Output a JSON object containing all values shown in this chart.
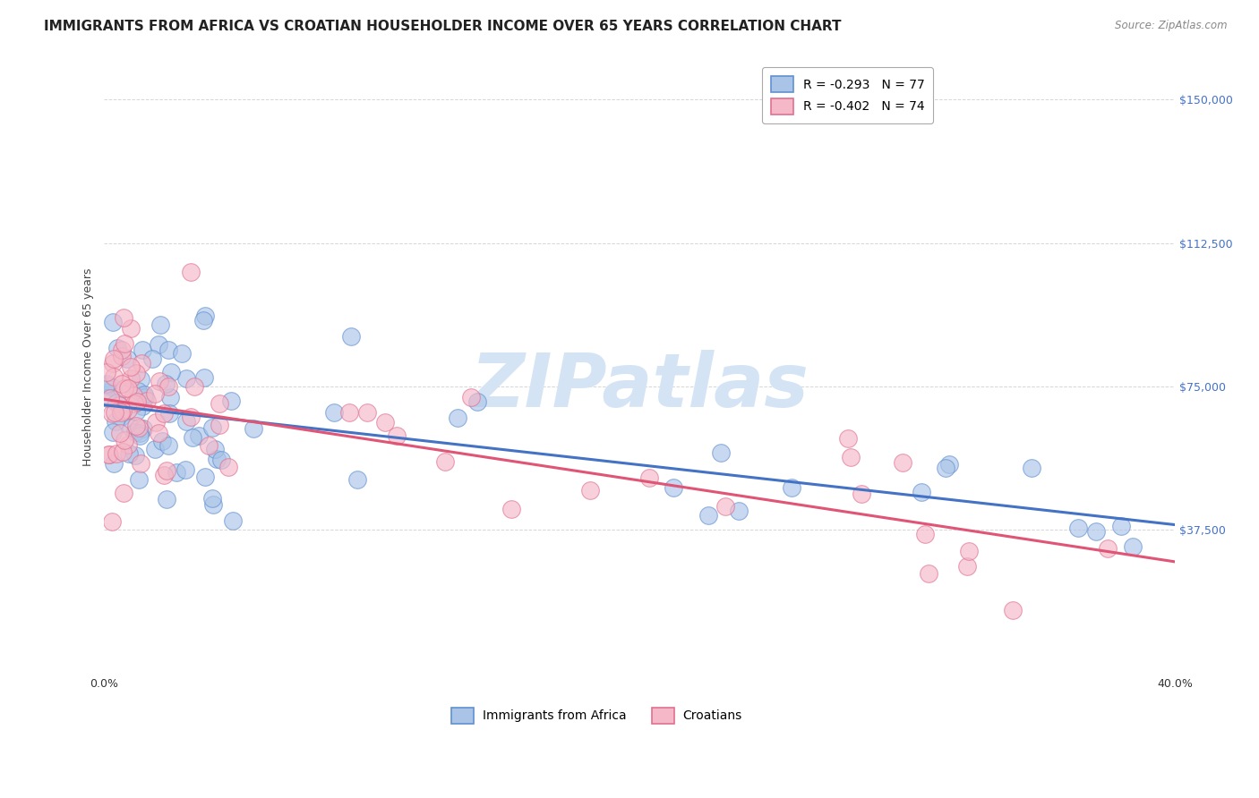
{
  "title": "IMMIGRANTS FROM AFRICA VS CROATIAN HOUSEHOLDER INCOME OVER 65 YEARS CORRELATION CHART",
  "source": "Source: ZipAtlas.com",
  "ylabel": "Householder Income Over 65 years",
  "xlim": [
    0.0,
    0.4
  ],
  "ylim": [
    0,
    160000
  ],
  "yticks": [
    0,
    37500,
    75000,
    112500,
    150000
  ],
  "ytick_labels": [
    "",
    "$37,500",
    "$75,000",
    "$112,500",
    "$150,000"
  ],
  "xticks": [
    0.0,
    0.05,
    0.1,
    0.15,
    0.2,
    0.25,
    0.3,
    0.35,
    0.4
  ],
  "legend_entries": [
    {
      "label": "R = -0.293   N = 77"
    },
    {
      "label": "R = -0.402   N = 74"
    }
  ],
  "series_africa": {
    "scatter_color": "#aac4e8",
    "edge_color": "#6090d0",
    "line_color": "#4472c4"
  },
  "series_croatian": {
    "scatter_color": "#f4b8c8",
    "edge_color": "#e07090",
    "line_color": "#e05575"
  },
  "background_color": "#ffffff",
  "grid_color": "#cccccc",
  "title_fontsize": 11,
  "axis_label_fontsize": 9,
  "tick_fontsize": 9,
  "legend_fontsize": 10,
  "watermark_text": "ZIPatlas",
  "watermark_color": "#d5e4f5",
  "watermark_fontsize": 60,
  "ytick_color": "#4472c4",
  "source_color": "#888888"
}
